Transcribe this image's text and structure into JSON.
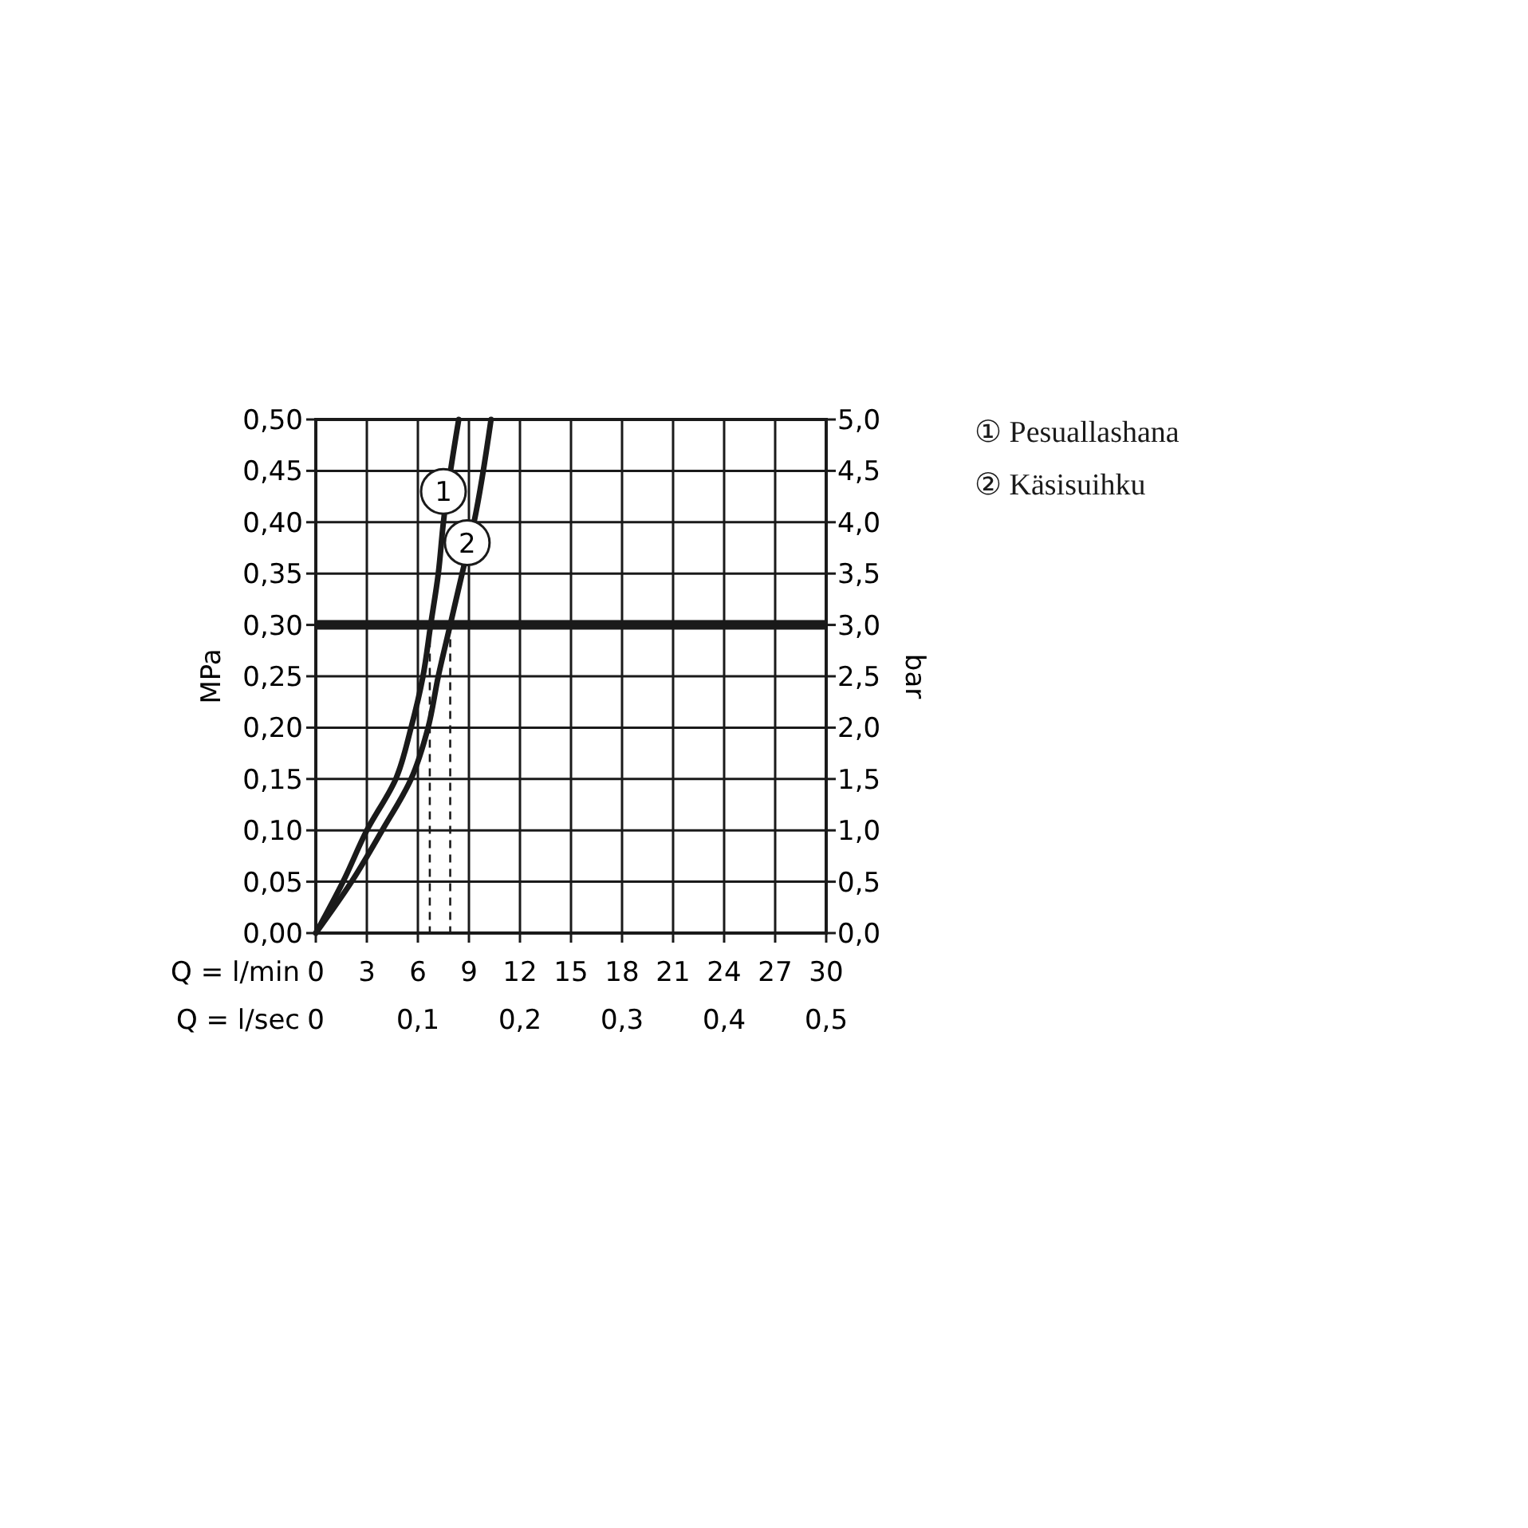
{
  "chart_data": {
    "type": "line",
    "xlabel": "Q = l/min",
    "ylabel": "MPa",
    "y2label": "bar",
    "x2label": "Q = l/sec",
    "xlim": [
      0,
      30
    ],
    "xticks": [
      0,
      3,
      6,
      9,
      12,
      15,
      18,
      21,
      24,
      27,
      30
    ],
    "x2lim": [
      0,
      0.5
    ],
    "x2ticks": [
      0,
      {
        "value": 0.1,
        "label": "0,1"
      },
      {
        "value": 0.2,
        "label": "0,2"
      },
      {
        "value": 0.3,
        "label": "0,3"
      },
      {
        "value": 0.4,
        "label": "0,4"
      },
      {
        "value": 0.5,
        "label": "0,5"
      }
    ],
    "ylim": [
      0,
      0.5
    ],
    "yticks": [
      {
        "value": 0,
        "label": "0,00"
      },
      {
        "value": 0.05,
        "label": "0,05"
      },
      {
        "value": 0.1,
        "label": "0,10"
      },
      {
        "value": 0.15,
        "label": "0,15"
      },
      {
        "value": 0.2,
        "label": "0,20"
      },
      {
        "value": 0.25,
        "label": "0,25"
      },
      {
        "value": 0.3,
        "label": "0,30"
      },
      {
        "value": 0.35,
        "label": "0,35"
      },
      {
        "value": 0.4,
        "label": "0,40"
      },
      {
        "value": 0.45,
        "label": "0,45"
      },
      {
        "value": 0.5,
        "label": "0,50"
      }
    ],
    "y2lim": [
      0,
      5
    ],
    "y2ticks": [
      {
        "value": 0,
        "label": "0,0"
      },
      {
        "value": 0.5,
        "label": "0,5"
      },
      {
        "value": 1,
        "label": "1,0"
      },
      {
        "value": 1.5,
        "label": "1,5"
      },
      {
        "value": 2,
        "label": "2,0"
      },
      {
        "value": 2.5,
        "label": "2,5"
      },
      {
        "value": 3,
        "label": "3,0"
      },
      {
        "value": 3.5,
        "label": "3,5"
      },
      {
        "value": 4,
        "label": "4,0"
      },
      {
        "value": 4.5,
        "label": "4,5"
      },
      {
        "value": 5,
        "label": "5,0"
      }
    ],
    "grid": true,
    "legend": "right",
    "marker": "none",
    "line_style": "solid",
    "series": [
      {
        "name": "① Pesuallashana",
        "color": "#1a1a1a",
        "x": [
          0,
          1.6,
          3.0,
          4.7,
          5.6,
          6.3,
          6.75,
          7.2,
          7.5,
          8.4
        ],
        "values": [
          0,
          0.05,
          0.1,
          0.15,
          0.2,
          0.25,
          0.3,
          0.35,
          0.4,
          0.5
        ]
      },
      {
        "name": "② Käsisuihku",
        "color": "#1a1a1a",
        "x": [
          0,
          2.1,
          3.9,
          5.6,
          6.6,
          7.2,
          7.9,
          8.6,
          9.3,
          10.3
        ],
        "values": [
          0,
          0.05,
          0.1,
          0.15,
          0.2,
          0.25,
          0.3,
          0.35,
          0.4,
          0.5
        ]
      }
    ],
    "ref_lines": [
      {
        "axis": "y",
        "value": 0.3,
        "color": "#1a1a1a",
        "line_style": "solid"
      },
      {
        "axis": "x",
        "value": 6.7,
        "color": "#1a1a1a",
        "line_style": "dashed"
      },
      {
        "axis": "x",
        "value": 7.9,
        "color": "#1a1a1a",
        "line_style": "dashed"
      }
    ],
    "annotations": [
      {
        "text": "1",
        "x": 7.5,
        "y": 0.43
      },
      {
        "text": "2",
        "x": 8.9,
        "y": 0.38
      }
    ]
  }
}
